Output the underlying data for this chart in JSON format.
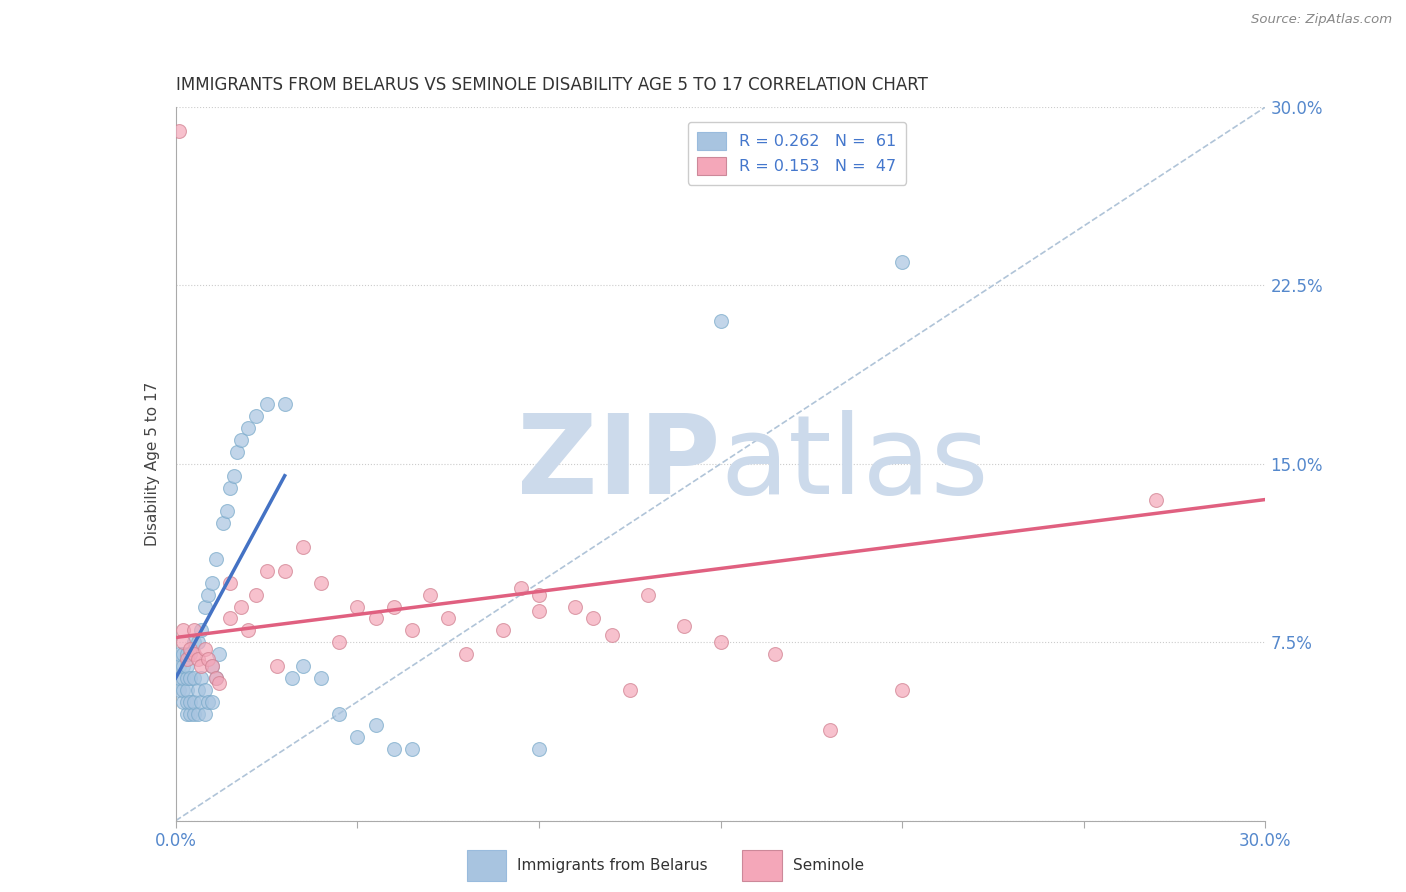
{
  "title": "IMMIGRANTS FROM BELARUS VS SEMINOLE DISABILITY AGE 5 TO 17 CORRELATION CHART",
  "source": "Source: ZipAtlas.com",
  "ylabel": "Disability Age 5 to 17",
  "xlim": [
    0.0,
    0.3
  ],
  "ylim": [
    0.0,
    0.3
  ],
  "xticks": [
    0.0,
    0.05,
    0.1,
    0.15,
    0.2,
    0.25,
    0.3
  ],
  "yticks": [
    0.0,
    0.075,
    0.15,
    0.225,
    0.3
  ],
  "xticklabels": [
    "0.0%",
    "",
    "",
    "",
    "",
    "",
    "30.0%"
  ],
  "yticklabels": [
    "",
    "7.5%",
    "15.0%",
    "22.5%",
    "30.0%"
  ],
  "legend_r1": "R = 0.262",
  "legend_n1": "N =  61",
  "legend_r2": "R = 0.153",
  "legend_n2": "N =  47",
  "color_blue": "#a8c4e0",
  "color_pink": "#f4a7b9",
  "line_blue": "#4472c4",
  "line_pink": "#e06080",
  "watermark_zip": "ZIP",
  "watermark_atlas": "atlas",
  "watermark_color": "#ccdaeb",
  "blue_scatter_x": [
    0.001,
    0.001,
    0.001,
    0.001,
    0.002,
    0.002,
    0.002,
    0.002,
    0.002,
    0.003,
    0.003,
    0.003,
    0.003,
    0.003,
    0.003,
    0.004,
    0.004,
    0.004,
    0.004,
    0.005,
    0.005,
    0.005,
    0.005,
    0.006,
    0.006,
    0.006,
    0.007,
    0.007,
    0.007,
    0.008,
    0.008,
    0.008,
    0.009,
    0.009,
    0.01,
    0.01,
    0.01,
    0.011,
    0.011,
    0.012,
    0.013,
    0.014,
    0.015,
    0.016,
    0.017,
    0.018,
    0.02,
    0.022,
    0.025,
    0.03,
    0.032,
    0.035,
    0.04,
    0.045,
    0.05,
    0.055,
    0.06,
    0.065,
    0.1,
    0.15,
    0.2
  ],
  "blue_scatter_y": [
    0.055,
    0.06,
    0.065,
    0.07,
    0.05,
    0.055,
    0.06,
    0.065,
    0.07,
    0.045,
    0.05,
    0.055,
    0.06,
    0.065,
    0.07,
    0.045,
    0.05,
    0.06,
    0.07,
    0.045,
    0.05,
    0.06,
    0.075,
    0.045,
    0.055,
    0.075,
    0.05,
    0.06,
    0.08,
    0.045,
    0.055,
    0.09,
    0.05,
    0.095,
    0.05,
    0.065,
    0.1,
    0.06,
    0.11,
    0.07,
    0.125,
    0.13,
    0.14,
    0.145,
    0.155,
    0.16,
    0.165,
    0.17,
    0.175,
    0.175,
    0.06,
    0.065,
    0.06,
    0.045,
    0.035,
    0.04,
    0.03,
    0.03,
    0.03,
    0.21,
    0.235
  ],
  "pink_scatter_x": [
    0.001,
    0.002,
    0.002,
    0.003,
    0.004,
    0.005,
    0.005,
    0.006,
    0.007,
    0.008,
    0.009,
    0.01,
    0.011,
    0.012,
    0.015,
    0.015,
    0.018,
    0.02,
    0.022,
    0.025,
    0.028,
    0.03,
    0.035,
    0.04,
    0.045,
    0.05,
    0.055,
    0.06,
    0.065,
    0.07,
    0.075,
    0.08,
    0.09,
    0.095,
    0.1,
    0.1,
    0.11,
    0.115,
    0.12,
    0.125,
    0.13,
    0.14,
    0.15,
    0.165,
    0.18,
    0.2,
    0.27
  ],
  "pink_scatter_y": [
    0.29,
    0.075,
    0.08,
    0.068,
    0.072,
    0.07,
    0.08,
    0.068,
    0.065,
    0.072,
    0.068,
    0.065,
    0.06,
    0.058,
    0.085,
    0.1,
    0.09,
    0.08,
    0.095,
    0.105,
    0.065,
    0.105,
    0.115,
    0.1,
    0.075,
    0.09,
    0.085,
    0.09,
    0.08,
    0.095,
    0.085,
    0.07,
    0.08,
    0.098,
    0.088,
    0.095,
    0.09,
    0.085,
    0.078,
    0.055,
    0.095,
    0.082,
    0.075,
    0.07,
    0.038,
    0.055,
    0.135
  ],
  "blue_trend_x": [
    0.0,
    0.03
  ],
  "blue_trend_y": [
    0.06,
    0.145
  ],
  "pink_trend_x": [
    0.0,
    0.3
  ],
  "pink_trend_y": [
    0.077,
    0.135
  ]
}
